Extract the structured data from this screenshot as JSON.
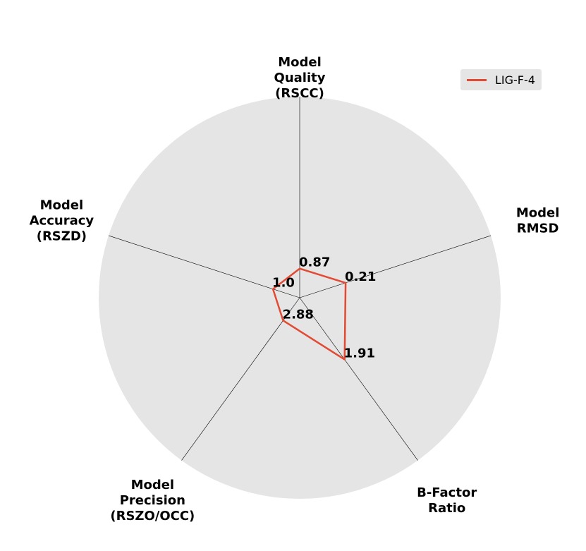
{
  "chart_data": {
    "type": "radar",
    "axes": [
      {
        "lines": [
          "Model",
          "Quality",
          "(RSCC)"
        ]
      },
      {
        "lines": [
          "Model",
          "RMSD"
        ]
      },
      {
        "lines": [
          "B-Factor",
          "Ratio"
        ]
      },
      {
        "lines": [
          "Model",
          "Precision",
          "(RSZO/OCC)"
        ]
      },
      {
        "lines": [
          "Model",
          "Accuracy",
          "(RSZD)"
        ]
      }
    ],
    "series": [
      {
        "name": "LIG-F-4",
        "color": "#e24a33",
        "values": [
          0.87,
          0.21,
          1.91,
          2.88,
          1.0
        ],
        "value_labels": [
          "0.87",
          "0.21",
          "1.91",
          "2.88",
          "1.0"
        ],
        "plotted_fraction": [
          0.145,
          0.24,
          0.38,
          0.14,
          0.14
        ]
      }
    ],
    "background_color": "#e5e5e5",
    "grid": false,
    "legend_position": "top-right"
  }
}
